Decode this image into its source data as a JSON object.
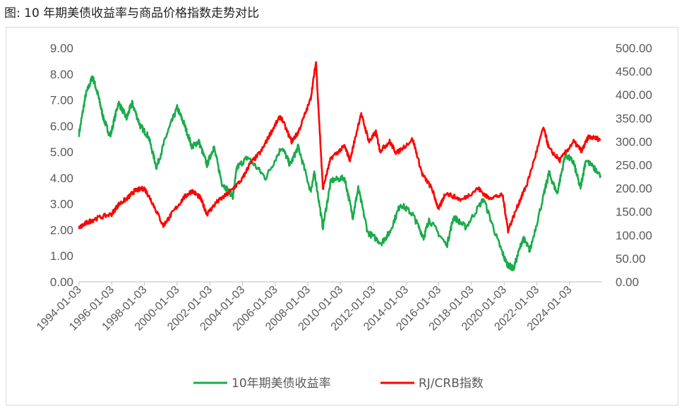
{
  "caption": "图: 10 年期美债收益率与商品价格指数走势对比",
  "chart_data": {
    "type": "line",
    "title": "",
    "xlabel": "",
    "ylabel_left": "",
    "ylabel_right": "",
    "left_axis": {
      "ylim": [
        0,
        9
      ],
      "ticks": [
        "9.00",
        "8.00",
        "7.00",
        "6.00",
        "5.00",
        "4.00",
        "3.00",
        "2.00",
        "1.00",
        "0.00"
      ]
    },
    "right_axis": {
      "ylim": [
        0,
        500
      ],
      "ticks": [
        "500.00",
        "450.00",
        "400.00",
        "350.00",
        "300.00",
        "250.00",
        "200.00",
        "150.00",
        "100.00",
        "50.00",
        "0.00"
      ]
    },
    "x_ticks": [
      "1994-01-03",
      "1996-01-03",
      "1998-01-03",
      "2000-01-03",
      "2002-01-03",
      "2004-01-03",
      "2006-01-03",
      "2008-01-03",
      "2010-01-03",
      "2012-01-03",
      "2014-01-03",
      "2016-01-03",
      "2018-01-03",
      "2020-01-03",
      "2022-01-03",
      "2024-01-03"
    ],
    "x_range": [
      "1994-01-03",
      "2025-12-31"
    ],
    "grid": false,
    "legend_position": "bottom",
    "series": [
      {
        "name": "10年期美债收益率",
        "axis": "left",
        "color": "#1aab4b",
        "points": [
          [
            "1994-01-03",
            5.7
          ],
          [
            "1994-06-01",
            7.2
          ],
          [
            "1994-11-01",
            7.9
          ],
          [
            "1995-03-01",
            7.2
          ],
          [
            "1995-07-01",
            6.3
          ],
          [
            "1995-12-01",
            5.6
          ],
          [
            "1996-06-01",
            6.9
          ],
          [
            "1996-12-01",
            6.3
          ],
          [
            "1997-04-01",
            6.9
          ],
          [
            "1997-10-01",
            6.0
          ],
          [
            "1998-04-01",
            5.6
          ],
          [
            "1998-10-01",
            4.4
          ],
          [
            "1999-05-01",
            5.6
          ],
          [
            "2000-01-03",
            6.7
          ],
          [
            "2000-06-01",
            6.1
          ],
          [
            "2000-12-01",
            5.2
          ],
          [
            "2001-05-01",
            5.4
          ],
          [
            "2001-11-01",
            4.5
          ],
          [
            "2002-04-01",
            5.2
          ],
          [
            "2002-10-01",
            3.8
          ],
          [
            "2003-06-01",
            3.3
          ],
          [
            "2003-09-01",
            4.4
          ],
          [
            "2004-05-01",
            4.8
          ],
          [
            "2005-06-01",
            4.0
          ],
          [
            "2006-06-01",
            5.2
          ],
          [
            "2006-12-01",
            4.5
          ],
          [
            "2007-06-01",
            5.2
          ],
          [
            "2008-03-01",
            3.5
          ],
          [
            "2008-06-01",
            4.2
          ],
          [
            "2008-12-01",
            2.1
          ],
          [
            "2009-06-01",
            3.9
          ],
          [
            "2010-04-01",
            4.0
          ],
          [
            "2010-10-01",
            2.5
          ],
          [
            "2011-02-01",
            3.6
          ],
          [
            "2011-09-01",
            1.9
          ],
          [
            "2012-07-01",
            1.5
          ],
          [
            "2013-01-01",
            1.9
          ],
          [
            "2013-09-01",
            3.0
          ],
          [
            "2014-06-01",
            2.6
          ],
          [
            "2015-02-01",
            1.7
          ],
          [
            "2015-06-01",
            2.4
          ],
          [
            "2016-07-01",
            1.4
          ],
          [
            "2016-12-01",
            2.5
          ],
          [
            "2017-09-01",
            2.1
          ],
          [
            "2018-10-01",
            3.2
          ],
          [
            "2019-09-01",
            1.5
          ],
          [
            "2020-03-01",
            0.7
          ],
          [
            "2020-08-01",
            0.5
          ],
          [
            "2021-03-01",
            1.7
          ],
          [
            "2021-08-01",
            1.2
          ],
          [
            "2022-06-01",
            3.3
          ],
          [
            "2022-10-01",
            4.2
          ],
          [
            "2023-04-01",
            3.4
          ],
          [
            "2023-10-01",
            4.9
          ],
          [
            "2024-04-01",
            4.6
          ],
          [
            "2024-09-01",
            3.6
          ],
          [
            "2025-01-01",
            4.7
          ],
          [
            "2025-12-01",
            4.1
          ]
        ]
      },
      {
        "name": "RJ/CRB指数",
        "axis": "right",
        "color": "#ff0000",
        "points": [
          [
            "1994-01-03",
            115
          ],
          [
            "1994-06-01",
            125
          ],
          [
            "1995-01-01",
            135
          ],
          [
            "1996-01-01",
            145
          ],
          [
            "1996-06-01",
            165
          ],
          [
            "1997-01-01",
            180
          ],
          [
            "1997-06-01",
            195
          ],
          [
            "1998-01-01",
            200
          ],
          [
            "1998-06-01",
            175
          ],
          [
            "1999-03-01",
            120
          ],
          [
            "1999-09-01",
            145
          ],
          [
            "2000-06-01",
            180
          ],
          [
            "2000-12-01",
            195
          ],
          [
            "2001-06-01",
            180
          ],
          [
            "2001-11-01",
            145
          ],
          [
            "2002-06-01",
            170
          ],
          [
            "2003-03-01",
            190
          ],
          [
            "2004-01-01",
            220
          ],
          [
            "2004-06-01",
            250
          ],
          [
            "2005-03-01",
            280
          ],
          [
            "2005-10-01",
            320
          ],
          [
            "2006-05-01",
            355
          ],
          [
            "2007-01-01",
            300
          ],
          [
            "2007-06-01",
            320
          ],
          [
            "2008-03-01",
            390
          ],
          [
            "2008-07-01",
            470
          ],
          [
            "2008-12-01",
            200
          ],
          [
            "2009-06-01",
            265
          ],
          [
            "2010-04-01",
            290
          ],
          [
            "2010-08-01",
            260
          ],
          [
            "2011-04-01",
            360
          ],
          [
            "2011-10-01",
            300
          ],
          [
            "2012-03-01",
            320
          ],
          [
            "2012-06-01",
            280
          ],
          [
            "2013-01-01",
            300
          ],
          [
            "2013-06-01",
            275
          ],
          [
            "2014-06-01",
            305
          ],
          [
            "2015-01-01",
            230
          ],
          [
            "2015-08-01",
            200
          ],
          [
            "2016-01-01",
            155
          ],
          [
            "2016-06-01",
            190
          ],
          [
            "2017-06-01",
            175
          ],
          [
            "2018-06-01",
            200
          ],
          [
            "2019-01-01",
            180
          ],
          [
            "2019-12-01",
            185
          ],
          [
            "2020-04-01",
            110
          ],
          [
            "2020-12-01",
            170
          ],
          [
            "2021-06-01",
            210
          ],
          [
            "2022-06-01",
            330
          ],
          [
            "2022-10-01",
            285
          ],
          [
            "2023-06-01",
            260
          ],
          [
            "2024-04-01",
            300
          ],
          [
            "2024-10-01",
            280
          ],
          [
            "2025-03-01",
            310
          ],
          [
            "2025-12-01",
            305
          ]
        ]
      }
    ]
  }
}
